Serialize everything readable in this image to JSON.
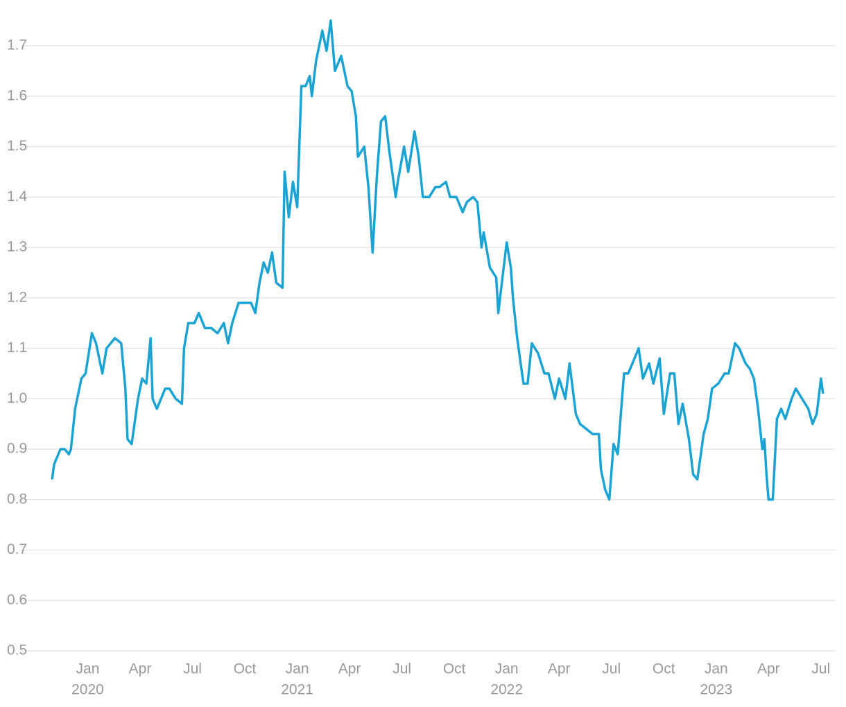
{
  "chart_data": {
    "type": "line",
    "color": "#1ba3d3",
    "grid": true,
    "xlim": [
      2019.78,
      2023.57
    ],
    "xticks": [
      {
        "value": 2020,
        "label": "Jan"
      },
      {
        "value": 2020.25,
        "label": "Apr"
      },
      {
        "value": 2020.5,
        "label": "Jul"
      },
      {
        "value": 2020.75,
        "label": "Oct"
      },
      {
        "value": 2021,
        "label": "Jan"
      },
      {
        "value": 2021.25,
        "label": "Apr"
      },
      {
        "value": 2021.5,
        "label": "Jul"
      },
      {
        "value": 2021.75,
        "label": "Oct"
      },
      {
        "value": 2022,
        "label": "Jan"
      },
      {
        "value": 2022.25,
        "label": "Apr"
      },
      {
        "value": 2022.5,
        "label": "Jul"
      },
      {
        "value": 2022.75,
        "label": "Oct"
      },
      {
        "value": 2023,
        "label": "Jan"
      },
      {
        "value": 2023.25,
        "label": "Apr"
      },
      {
        "value": 2023.5,
        "label": "Jul"
      }
    ],
    "xtick_years": [
      {
        "value": 2020,
        "label": "2020"
      },
      {
        "value": 2021,
        "label": "2021"
      },
      {
        "value": 2022,
        "label": "2022"
      },
      {
        "value": 2023,
        "label": "2023"
      }
    ],
    "ylim": [
      0.5,
      1.7
    ],
    "yticks": [
      {
        "value": 0.5,
        "label": "0.5"
      },
      {
        "value": 0.6,
        "label": "0.6"
      },
      {
        "value": 0.7,
        "label": "0.7"
      },
      {
        "value": 0.8,
        "label": "0.8"
      },
      {
        "value": 0.9,
        "label": "0.9"
      },
      {
        "value": 1,
        "label": "1.0"
      },
      {
        "value": 1.1,
        "label": "1.1"
      },
      {
        "value": 1.2,
        "label": "1.2"
      },
      {
        "value": 1.3,
        "label": "1.3"
      },
      {
        "value": 1.4,
        "label": "1.4"
      },
      {
        "value": 1.5,
        "label": "1.5"
      },
      {
        "value": 1.6,
        "label": "1.6"
      },
      {
        "value": 1.7,
        "label": "1.7"
      }
    ],
    "x": [
      2019.83,
      2019.84,
      2019.87,
      2019.89,
      2019.91,
      2019.92,
      2019.94,
      2019.97,
      2019.99,
      2020.02,
      2020.04,
      2020.07,
      2020.09,
      2020.13,
      2020.16,
      2020.18,
      2020.19,
      2020.21,
      2020.24,
      2020.26,
      2020.28,
      2020.3,
      2020.31,
      2020.33,
      2020.37,
      2020.39,
      2020.42,
      2020.45,
      2020.46,
      2020.48,
      2020.51,
      2020.53,
      2020.56,
      2020.59,
      2020.62,
      2020.65,
      2020.67,
      2020.69,
      2020.72,
      2020.75,
      2020.78,
      2020.8,
      2020.82,
      2020.84,
      2020.86,
      2020.88,
      2020.9,
      2020.93,
      2020.94,
      2020.96,
      2020.98,
      2021.0,
      2021.02,
      2021.04,
      2021.06,
      2021.07,
      2021.09,
      2021.12,
      2021.14,
      2021.16,
      2021.18,
      2021.21,
      2021.24,
      2021.26,
      2021.28,
      2021.29,
      2021.32,
      2021.34,
      2021.36,
      2021.38,
      2021.4,
      2021.42,
      2021.44,
      2021.47,
      2021.48,
      2021.51,
      2021.53,
      2021.56,
      2021.58,
      2021.6,
      2021.63,
      2021.66,
      2021.68,
      2021.71,
      2021.73,
      2021.76,
      2021.79,
      2021.81,
      2021.84,
      2021.86,
      2021.88,
      2021.89,
      2021.92,
      2021.95,
      2021.96,
      2021.98,
      2022.0,
      2022.02,
      2022.03,
      2022.05,
      2022.08,
      2022.1,
      2022.12,
      2022.15,
      2022.18,
      2022.2,
      2022.23,
      2022.25,
      2022.28,
      2022.3,
      2022.33,
      2022.35,
      2022.38,
      2022.41,
      2022.44,
      2022.45,
      2022.47,
      2022.49,
      2022.51,
      2022.53,
      2022.56,
      2022.58,
      2022.6,
      2022.63,
      2022.65,
      2022.68,
      2022.7,
      2022.73,
      2022.75,
      2022.78,
      2022.8,
      2022.82,
      2022.84,
      2022.87,
      2022.89,
      2022.91,
      2022.94,
      2022.96,
      2022.98,
      2023.01,
      2023.04,
      2023.06,
      2023.09,
      2023.11,
      2023.14,
      2023.16,
      2023.18,
      2023.2,
      2023.22,
      2023.23,
      2023.24,
      2023.25,
      2023.27,
      2023.29,
      2023.31,
      2023.33,
      2023.36,
      2023.38,
      2023.41,
      2023.44,
      2023.46,
      2023.48,
      2023.5,
      2023.51
    ],
    "values": [
      0.84,
      0.87,
      0.9,
      0.9,
      0.89,
      0.9,
      0.98,
      1.04,
      1.05,
      1.13,
      1.11,
      1.05,
      1.1,
      1.12,
      1.11,
      1.02,
      0.92,
      0.91,
      1.0,
      1.04,
      1.03,
      1.12,
      1.0,
      0.98,
      1.02,
      1.02,
      1.0,
      0.99,
      1.1,
      1.15,
      1.15,
      1.17,
      1.14,
      1.14,
      1.13,
      1.15,
      1.11,
      1.15,
      1.19,
      1.19,
      1.19,
      1.17,
      1.23,
      1.27,
      1.25,
      1.29,
      1.23,
      1.22,
      1.45,
      1.36,
      1.43,
      1.38,
      1.62,
      1.62,
      1.64,
      1.6,
      1.67,
      1.73,
      1.69,
      1.75,
      1.65,
      1.68,
      1.62,
      1.61,
      1.56,
      1.48,
      1.5,
      1.42,
      1.29,
      1.44,
      1.55,
      1.56,
      1.49,
      1.4,
      1.43,
      1.5,
      1.45,
      1.53,
      1.48,
      1.4,
      1.4,
      1.42,
      1.42,
      1.43,
      1.4,
      1.4,
      1.37,
      1.39,
      1.4,
      1.39,
      1.3,
      1.33,
      1.26,
      1.24,
      1.17,
      1.24,
      1.31,
      1.26,
      1.2,
      1.12,
      1.03,
      1.03,
      1.11,
      1.09,
      1.05,
      1.05,
      1.0,
      1.04,
      1.0,
      1.07,
      0.97,
      0.95,
      0.94,
      0.93,
      0.93,
      0.86,
      0.82,
      0.8,
      0.91,
      0.89,
      1.05,
      1.05,
      1.07,
      1.1,
      1.04,
      1.07,
      1.03,
      1.08,
      0.97,
      1.05,
      1.05,
      0.95,
      0.99,
      0.92,
      0.85,
      0.84,
      0.93,
      0.96,
      1.02,
      1.03,
      1.05,
      1.05,
      1.11,
      1.1,
      1.07,
      1.06,
      1.04,
      0.98,
      0.9,
      0.92,
      0.85,
      0.8,
      0.8,
      0.96,
      0.98,
      0.96,
      1.0,
      1.02,
      1.0,
      0.98,
      0.95,
      0.97,
      1.04,
      1.01
    ]
  }
}
